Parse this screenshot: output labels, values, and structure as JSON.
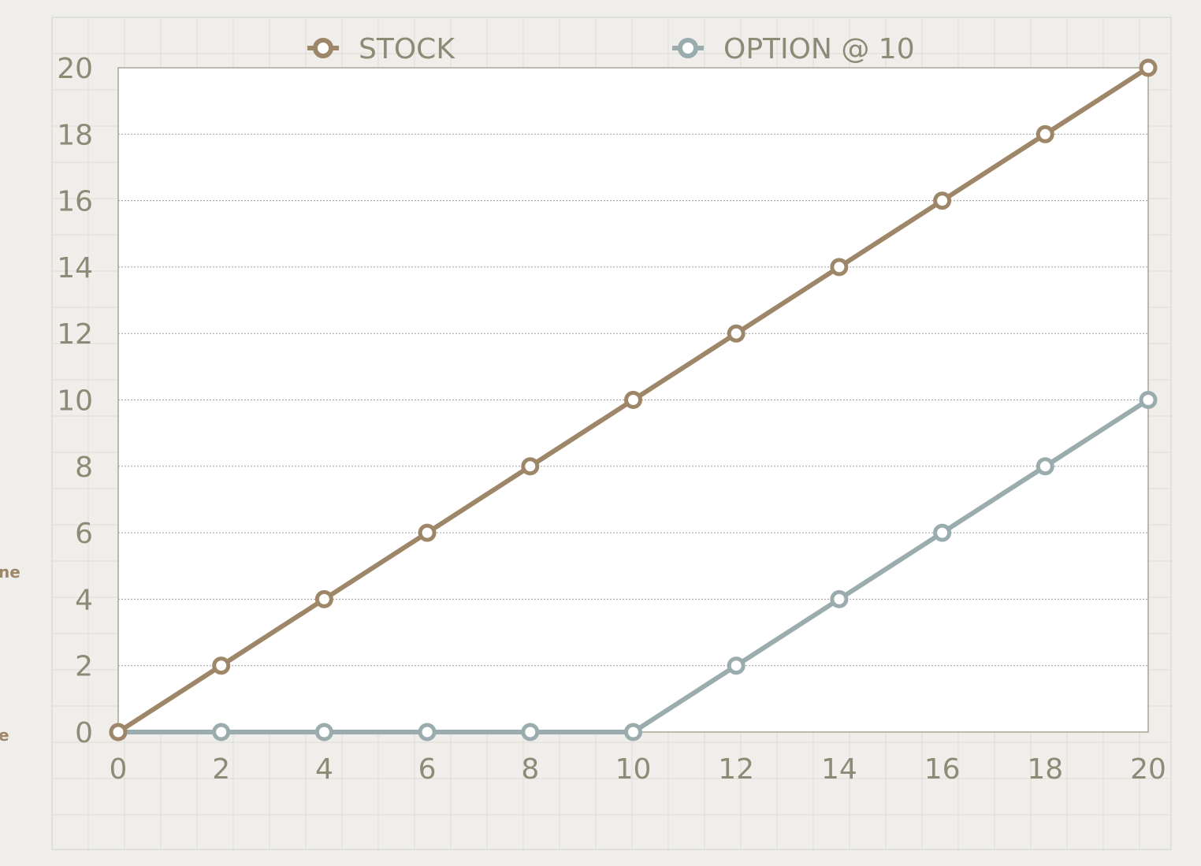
{
  "colors": {
    "stock": "#9e8669",
    "option": "#9aacad",
    "axis_text": "#8d8a76",
    "plot_bg": "#ffffff",
    "paper": "#efeeea",
    "paper_grid": "#dcdcd6",
    "gridline": "#a0a0a0"
  },
  "edge_fragments": [
    "ne",
    "e"
  ],
  "chart_data": {
    "type": "line",
    "title": "",
    "xlabel": "",
    "ylabel": "",
    "x": [
      0,
      2,
      4,
      6,
      8,
      10,
      12,
      14,
      16,
      18,
      20
    ],
    "xlim": [
      0,
      20
    ],
    "ylim": [
      0,
      20
    ],
    "x_ticks": [
      0,
      2,
      4,
      6,
      8,
      10,
      12,
      14,
      16,
      18,
      20
    ],
    "y_ticks": [
      0,
      2,
      4,
      6,
      8,
      10,
      12,
      14,
      16,
      18,
      20
    ],
    "grid": "horizontal dotted",
    "legend_position": "top",
    "series": [
      {
        "name": "STOCK",
        "color_key": "stock",
        "values": [
          0,
          2,
          4,
          6,
          8,
          10,
          12,
          14,
          16,
          18,
          20
        ]
      },
      {
        "name": "OPTION @ 10",
        "color_key": "option",
        "values": [
          0,
          0,
          0,
          0,
          0,
          0,
          2,
          4,
          6,
          8,
          10
        ]
      }
    ]
  }
}
